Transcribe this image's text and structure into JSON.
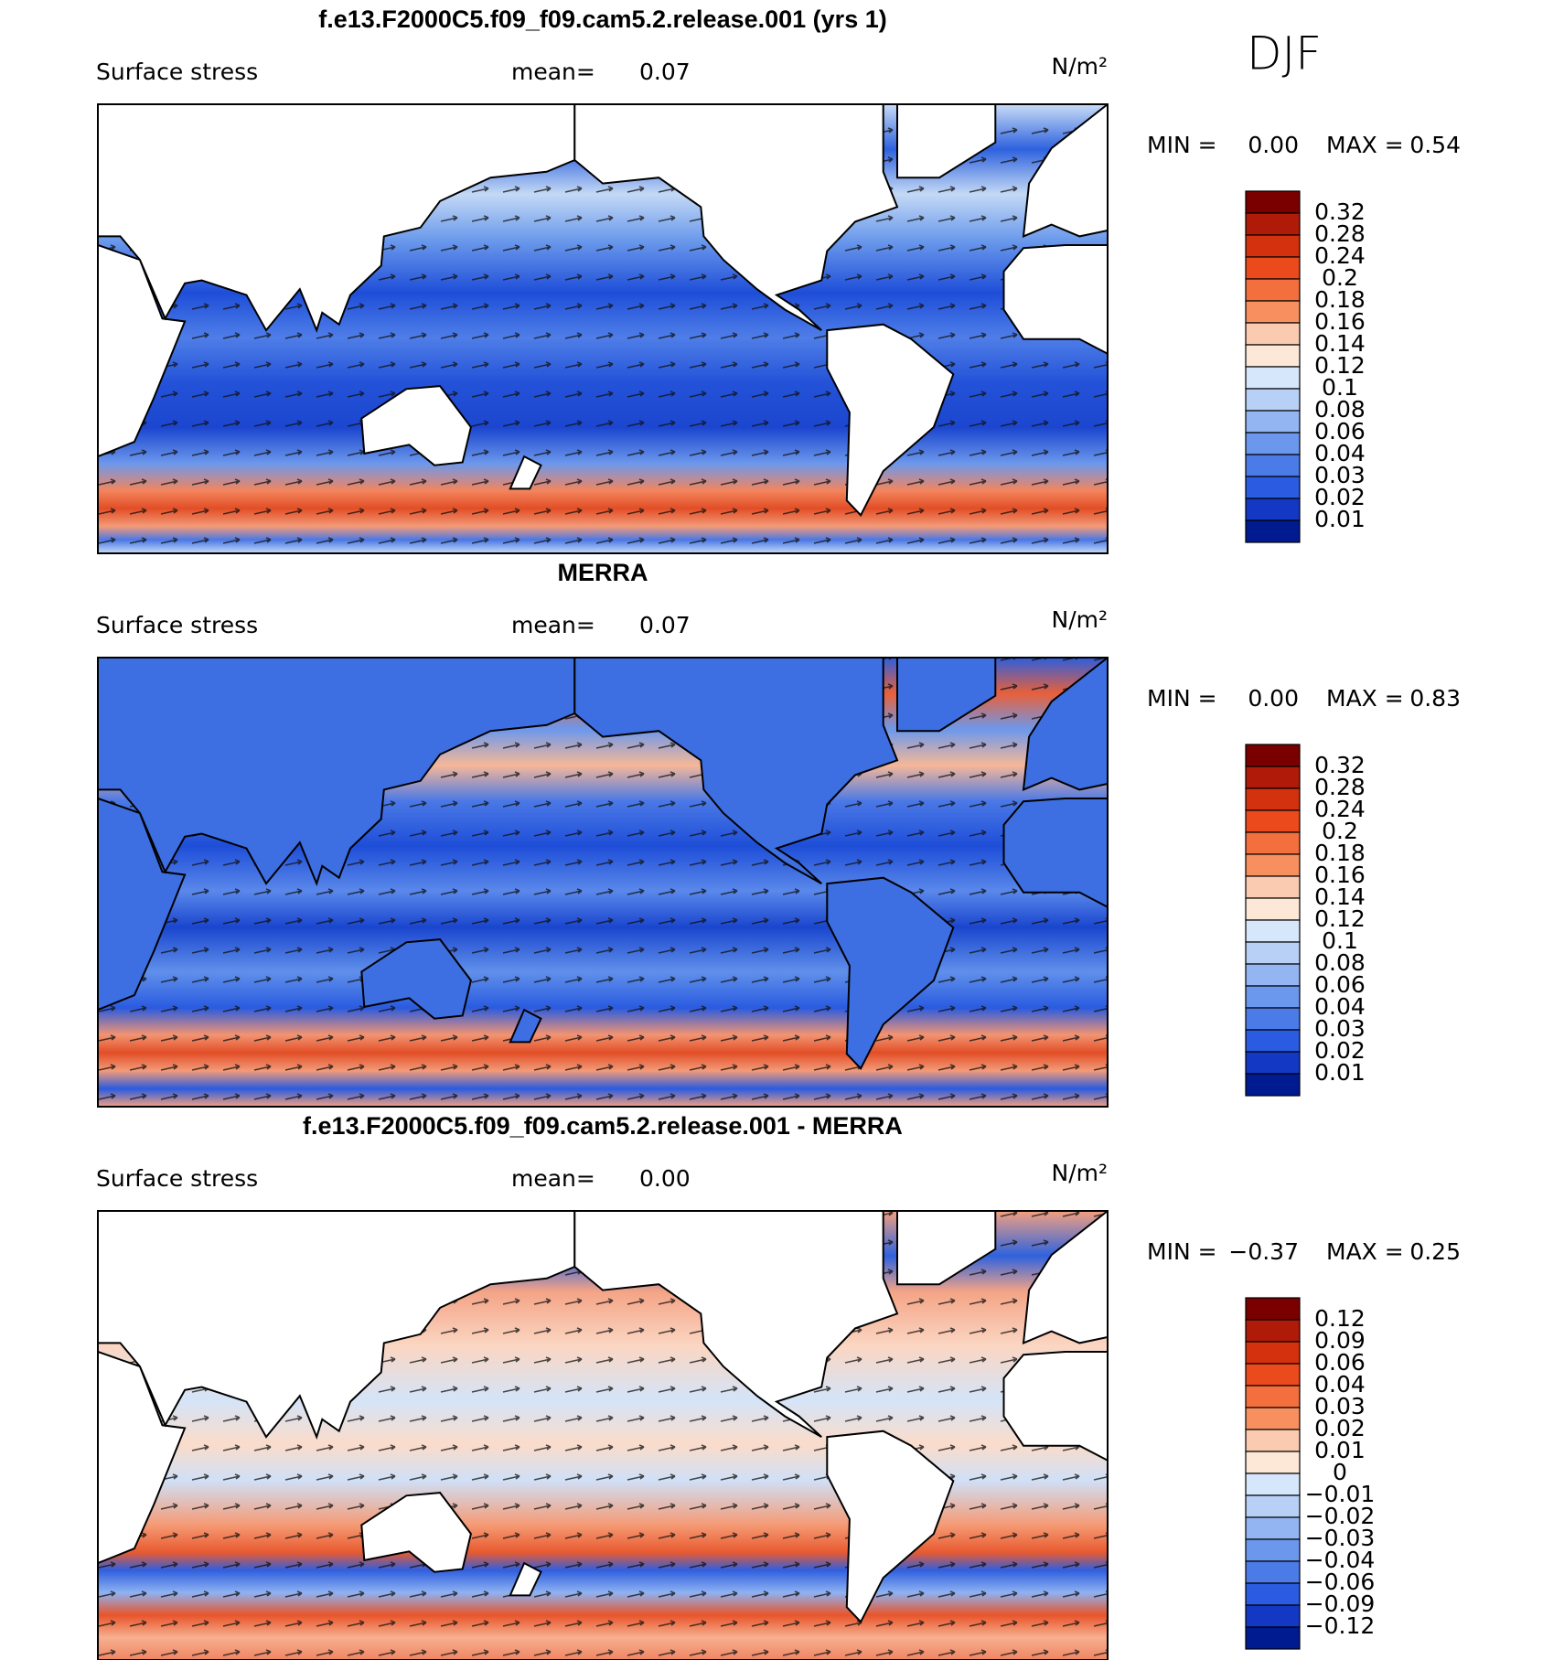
{
  "season": "DJF",
  "panels": [
    {
      "title": "f.e13.F2000C5.f09_f09.cam5.2.release.001 (yrs 1)",
      "variable": "Surface stress",
      "mean_label": "mean=",
      "mean": "0.07",
      "units": "N/m²",
      "min_label": "MIN =",
      "min": "0.00",
      "max_label": "MAX =",
      "max": "0.54",
      "colorbar": {
        "levels": [
          0.32,
          0.28,
          0.24,
          0.2,
          0.18,
          0.16,
          0.14,
          0.12,
          0.1,
          0.08,
          0.06,
          0.04,
          0.03,
          0.02,
          0.01
        ],
        "colors": [
          "#7a0000",
          "#b01a08",
          "#d4320e",
          "#ea4a1c",
          "#f3703e",
          "#f7905e",
          "#facbb0",
          "#fde8d8",
          "#d6e7fb",
          "#b8d0f6",
          "#93b6f2",
          "#6b98ec",
          "#4a7be6",
          "#2a5be0",
          "#1238c4",
          "#001a90"
        ]
      }
    },
    {
      "title": "MERRA",
      "variable": "Surface stress",
      "mean_label": "mean=",
      "mean": "0.07",
      "units": "N/m²",
      "min_label": "MIN =",
      "min": "0.00",
      "max_label": "MAX =",
      "max": "0.83",
      "colorbar": {
        "levels": [
          0.32,
          0.28,
          0.24,
          0.2,
          0.18,
          0.16,
          0.14,
          0.12,
          0.1,
          0.08,
          0.06,
          0.04,
          0.03,
          0.02,
          0.01
        ],
        "colors": [
          "#7a0000",
          "#b01a08",
          "#d4320e",
          "#ea4a1c",
          "#f3703e",
          "#f7905e",
          "#facbb0",
          "#fde8d8",
          "#d6e7fb",
          "#b8d0f6",
          "#93b6f2",
          "#6b98ec",
          "#4a7be6",
          "#2a5be0",
          "#1238c4",
          "#001a90"
        ]
      }
    },
    {
      "title": "f.e13.F2000C5.f09_f09.cam5.2.release.001 - MERRA",
      "variable": "Surface stress",
      "mean_label": "mean=",
      "mean": "0.00",
      "units": "N/m²",
      "min_label": "MIN =",
      "min": "−0.37",
      "max_label": "MAX =",
      "max": "0.25",
      "colorbar": {
        "levels": [
          0.12,
          0.09,
          0.06,
          0.04,
          0.03,
          0.02,
          0.01,
          0,
          {
            "value": -0.01,
            "label": "−0.01"
          },
          {
            "value": -0.02,
            "label": "−0.02"
          },
          {
            "value": -0.03,
            "label": "−0.03"
          },
          {
            "value": -0.04,
            "label": "−0.04"
          },
          {
            "value": -0.06,
            "label": "−0.06"
          },
          {
            "value": -0.09,
            "label": "−0.09"
          },
          {
            "value": -0.12,
            "label": "−0.12"
          }
        ],
        "colors": [
          "#7a0000",
          "#b01a08",
          "#d4320e",
          "#ea4a1c",
          "#f3703e",
          "#f7905e",
          "#facbb0",
          "#fde8d8",
          "#d6e7fb",
          "#b8d0f6",
          "#93b6f2",
          "#6b98ec",
          "#4a7be6",
          "#2a5be0",
          "#1238c4",
          "#001a90"
        ]
      }
    }
  ]
}
